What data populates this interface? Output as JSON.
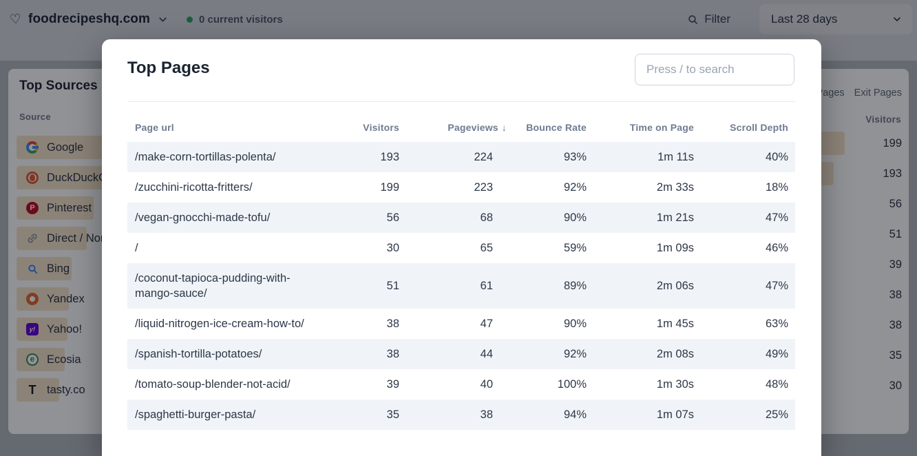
{
  "header": {
    "site": "foodrecipeshq.com",
    "current_visitors": "0 current visitors",
    "filter_label": "Filter",
    "date_range": "Last 28 days"
  },
  "modal": {
    "title": "Top Pages",
    "search_placeholder": "Press / to search",
    "table": {
      "headers": {
        "url": "Page url",
        "visitors": "Visitors",
        "pageviews": "Pageviews",
        "sort_icon": "↓",
        "bounce": "Bounce Rate",
        "time": "Time on Page",
        "scroll": "Scroll Depth"
      },
      "rows": [
        {
          "url": "/make-corn-tortillas-polenta/",
          "visitors": "193",
          "pageviews": "224",
          "bounce": "93%",
          "time": "1m 11s",
          "scroll": "40%"
        },
        {
          "url": "/zucchini-ricotta-fritters/",
          "visitors": "199",
          "pageviews": "223",
          "bounce": "92%",
          "time": "2m 33s",
          "scroll": "18%"
        },
        {
          "url": "/vegan-gnocchi-made-tofu/",
          "visitors": "56",
          "pageviews": "68",
          "bounce": "90%",
          "time": "1m 21s",
          "scroll": "47%"
        },
        {
          "url": "/",
          "visitors": "30",
          "pageviews": "65",
          "bounce": "59%",
          "time": "1m 09s",
          "scroll": "46%"
        },
        {
          "url": "/coconut-tapioca-pudding-with-mango-sauce/",
          "visitors": "51",
          "pageviews": "61",
          "bounce": "89%",
          "time": "2m 06s",
          "scroll": "47%"
        },
        {
          "url": "/liquid-nitrogen-ice-cream-how-to/",
          "visitors": "38",
          "pageviews": "47",
          "bounce": "90%",
          "time": "1m 45s",
          "scroll": "63%"
        },
        {
          "url": "/spanish-tortilla-potatoes/",
          "visitors": "38",
          "pageviews": "44",
          "bounce": "92%",
          "time": "2m 08s",
          "scroll": "49%"
        },
        {
          "url": "/tomato-soup-blender-not-acid/",
          "visitors": "39",
          "pageviews": "40",
          "bounce": "100%",
          "time": "1m 30s",
          "scroll": "48%"
        },
        {
          "url": "/spaghetti-burger-pasta/",
          "visitors": "35",
          "pageviews": "38",
          "bounce": "94%",
          "time": "1m 07s",
          "scroll": "25%"
        }
      ]
    }
  },
  "sources_card": {
    "title": "Top Sources",
    "column_label": "Source",
    "items": [
      {
        "name": "Google",
        "icon": "google"
      },
      {
        "name": "DuckDuckGo",
        "icon": "duckduckgo"
      },
      {
        "name": "Pinterest",
        "icon": "pinterest"
      },
      {
        "name": "Direct / None",
        "icon": "direct-link"
      },
      {
        "name": "Bing",
        "icon": "bing"
      },
      {
        "name": "Yandex",
        "icon": "yandex"
      },
      {
        "name": "Yahoo!",
        "icon": "yahoo"
      },
      {
        "name": "Ecosia",
        "icon": "ecosia"
      },
      {
        "name": "tasty.co",
        "icon": "tasty"
      }
    ]
  },
  "pages_card": {
    "tabs": [
      {
        "label": "Entry Pages"
      },
      {
        "label": "Exit Pages"
      }
    ],
    "column_label": "Visitors",
    "values": [
      "199",
      "193",
      "56",
      "51",
      "39",
      "38",
      "38",
      "35",
      "30"
    ]
  },
  "colors": {
    "bar_accent": "#f6e4c9",
    "row_stripe": "#f0f4f8",
    "live_dot": "#27a35a"
  }
}
